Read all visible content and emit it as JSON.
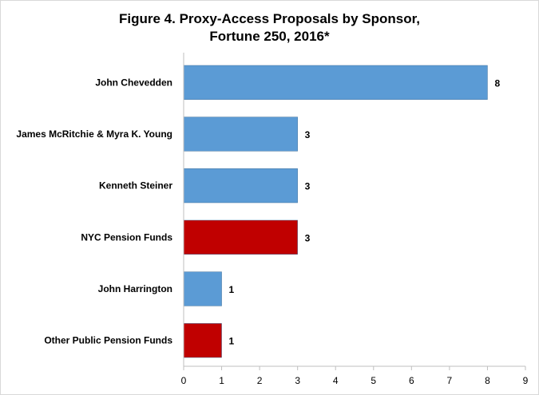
{
  "chart_data": {
    "type": "bar",
    "orientation": "horizontal",
    "title_lines": [
      "Figure 4. Proxy-Access Proposals by Sponsor,",
      "Fortune 250, 2016*"
    ],
    "categories": [
      "John Chevedden",
      "James McRitchie & Myra K. Young",
      "Kenneth Steiner",
      "NYC Pension Funds",
      "John Harrington",
      "Other Public Pension Funds"
    ],
    "values": [
      8,
      3,
      3,
      3,
      1,
      1
    ],
    "bar_colors": [
      "#5b9bd5",
      "#5b9bd5",
      "#5b9bd5",
      "#c00000",
      "#5b9bd5",
      "#c00000"
    ],
    "xlim": [
      0,
      9
    ],
    "xticks": [
      0,
      1,
      2,
      3,
      4,
      5,
      6,
      7,
      8,
      9
    ],
    "data_labels": true,
    "grid": false,
    "legend": "none"
  }
}
